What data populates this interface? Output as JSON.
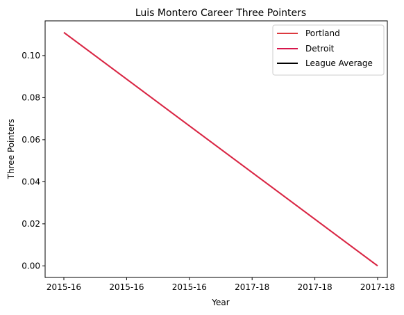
{
  "chart_data": {
    "type": "line",
    "title": "Luis Montero Career Three Pointers",
    "xlabel": "Year",
    "ylabel": "Three Pointers",
    "x_tick_labels": [
      "2015-16",
      "2015-16",
      "2015-16",
      "2017-18",
      "2017-18",
      "2017-18"
    ],
    "x_range": [
      0,
      5
    ],
    "ylim": [
      -0.0055,
      0.1165
    ],
    "y_ticks": [
      0.0,
      0.02,
      0.04,
      0.06,
      0.08,
      0.1
    ],
    "y_tick_labels": [
      "0.00",
      "0.02",
      "0.04",
      "0.06",
      "0.08",
      "0.10"
    ],
    "grid": false,
    "legend_position": "top-right",
    "series": [
      {
        "name": "Portland",
        "color": "#dc3a3f",
        "points": [
          [
            0,
            0.111
          ],
          [
            5,
            0.0
          ]
        ]
      },
      {
        "name": "Detroit",
        "color": "#d7164b",
        "points": [
          [
            0,
            0.111
          ],
          [
            5,
            0.0
          ]
        ]
      },
      {
        "name": "League Average",
        "color": "#000000",
        "points": []
      }
    ]
  }
}
